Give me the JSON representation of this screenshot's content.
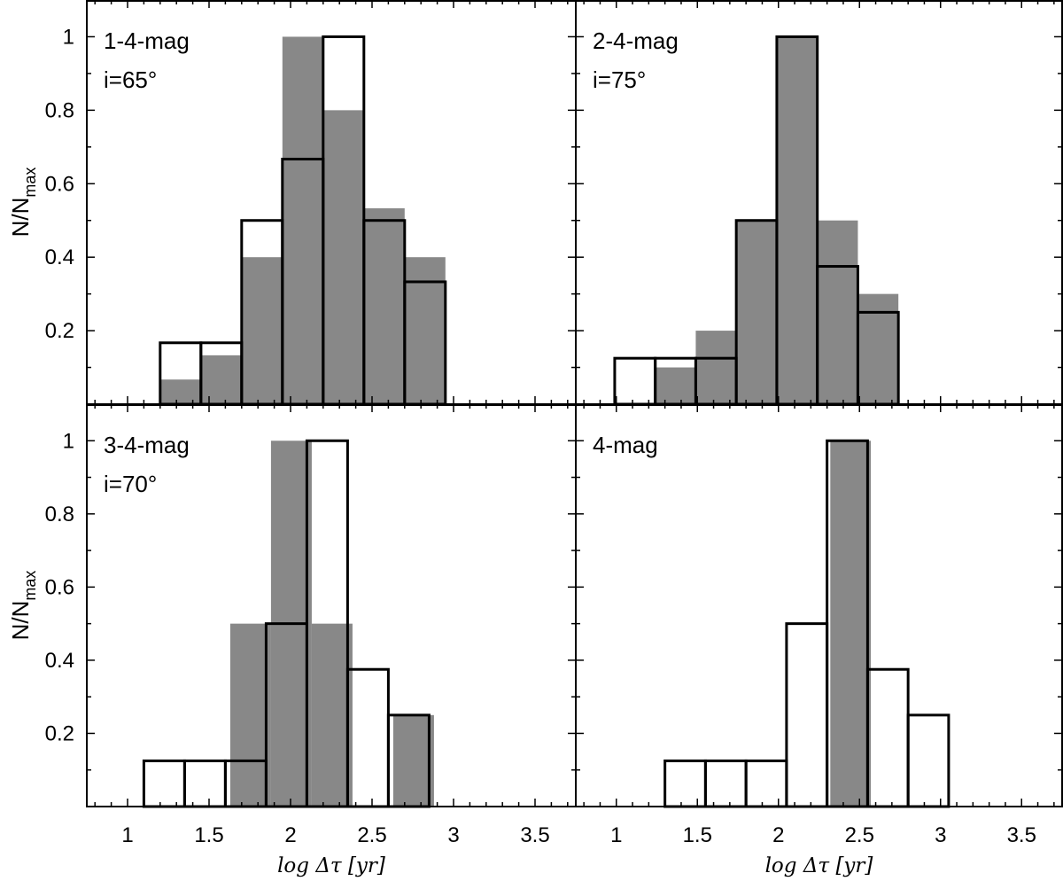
{
  "chart_data": [
    {
      "type": "bar",
      "panel": "top-left",
      "label": "1-4-mag",
      "inclination": "i=65°",
      "xlim": [
        0.75,
        3.75
      ],
      "ylim": [
        0,
        1.1
      ],
      "filled_hist": {
        "bin_width": 0.25,
        "left_edges": [
          1.2,
          1.45,
          1.7,
          1.95,
          2.2,
          2.45,
          2.7
        ],
        "values": [
          0.067,
          0.133,
          0.4,
          1.0,
          0.8,
          0.533,
          0.4
        ]
      },
      "open_hist": {
        "bin_width": 0.25,
        "left_edges": [
          1.2,
          1.45,
          1.7,
          1.95,
          2.2,
          2.45,
          2.7
        ],
        "values": [
          0.167,
          0.167,
          0.5,
          0.667,
          1.0,
          0.5,
          0.333
        ]
      }
    },
    {
      "type": "bar",
      "panel": "top-right",
      "label": "2-4-mag",
      "inclination": "i=75°",
      "xlim": [
        0.75,
        3.75
      ],
      "ylim": [
        0,
        1.1
      ],
      "filled_hist": {
        "bin_width": 0.25,
        "left_edges": [
          1.24,
          1.49,
          1.74,
          1.99,
          2.24,
          2.49
        ],
        "values": [
          0.1,
          0.2,
          0.5,
          1.0,
          0.5,
          0.3
        ]
      },
      "open_hist": {
        "bin_width": 0.25,
        "left_edges": [
          0.99,
          1.24,
          1.49,
          1.74,
          1.99,
          2.24,
          2.49
        ],
        "values": [
          0.125,
          0.125,
          0.125,
          0.5,
          1.0,
          0.375,
          0.25
        ]
      }
    },
    {
      "type": "bar",
      "panel": "bottom-left",
      "label": "3-4-mag",
      "inclination": "i=70°",
      "xlim": [
        0.75,
        3.75
      ],
      "ylim": [
        0,
        1.1
      ],
      "filled_hist": {
        "bin_width": 0.25,
        "left_edges": [
          1.63,
          1.88,
          2.13,
          2.63
        ],
        "values": [
          0.5,
          1.0,
          0.5,
          0.25
        ]
      },
      "open_hist": {
        "bin_width": 0.25,
        "left_edges": [
          1.1,
          1.35,
          1.6,
          1.85,
          2.1,
          2.35,
          2.6
        ],
        "values": [
          0.125,
          0.125,
          0.125,
          0.5,
          1.0,
          0.375,
          0.25
        ]
      }
    },
    {
      "type": "bar",
      "panel": "bottom-right",
      "label": "4-mag",
      "inclination": "",
      "xlim": [
        0.75,
        3.75
      ],
      "ylim": [
        0,
        1.1
      ],
      "filled_hist": {
        "bin_width": 0.25,
        "left_edges": [
          2.32
        ],
        "values": [
          1.0
        ]
      },
      "open_hist": {
        "bin_width": 0.25,
        "left_edges": [
          1.3,
          1.55,
          1.8,
          2.05,
          2.3,
          2.55,
          2.8
        ],
        "values": [
          0.125,
          0.125,
          0.125,
          0.5,
          1.0,
          0.375,
          0.25
        ]
      }
    }
  ],
  "axes": {
    "xlabel": "log Δτ [yr]",
    "ylabel_main": "N/N",
    "ylabel_sub": "max",
    "xticks": [
      1,
      1.5,
      2,
      2.5,
      3,
      3.5
    ],
    "xtick_labels": [
      "1",
      "1.5",
      "2",
      "2.5",
      "3",
      "3.5"
    ],
    "yticks": [
      0.2,
      0.4,
      0.6,
      0.8,
      1
    ],
    "ytick_labels": [
      "0.2",
      "0.4",
      "0.6",
      "0.8",
      "1"
    ]
  },
  "colors": {
    "filled": "#888888",
    "outline": "#000000",
    "background": "#ffffff"
  }
}
